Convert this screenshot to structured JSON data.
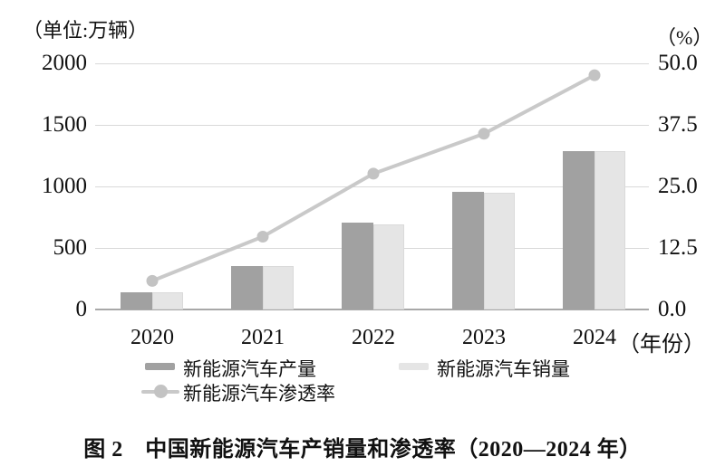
{
  "page": {
    "unit_left": "（单位:万辆）",
    "unit_right": "（%）",
    "year_suffix": "（年份）",
    "caption": "图 2　中国新能源汽车产销量和渗透率（2020—2024 年）"
  },
  "axes": {
    "left_ticks": [
      "2000",
      "1500",
      "1000",
      "500",
      "0"
    ],
    "right_ticks": [
      "50.0",
      "37.5",
      "25.0",
      "12.5",
      "0.0"
    ]
  },
  "legend": {
    "production": "新能源汽车产量",
    "sales": "新能源汽车销量",
    "penetration": "新能源汽车渗透率"
  },
  "colors": {
    "production_bar": "#a1a1a1",
    "sales_bar": "#e5e5e5",
    "sales_bar_border": "#dadada",
    "line": "#c9c9c9",
    "marker": "#c3c3c3",
    "gridline": "#d9d9d9",
    "baseline": "#a8a8a8",
    "text": "#111111"
  },
  "chart_data": {
    "type": "combo-bar-line",
    "title": "中国新能源汽车产销量和渗透率（2020—2024年）",
    "categories": [
      "2020",
      "2021",
      "2022",
      "2023",
      "2024"
    ],
    "series": [
      {
        "name": "新能源汽车产量",
        "type": "bar",
        "axis": "left",
        "values": [
          136.6,
          354.5,
          705.8,
          958.7,
          1288.8
        ]
      },
      {
        "name": "新能源汽车销量",
        "type": "bar",
        "axis": "left",
        "values": [
          136.7,
          352.1,
          688.7,
          949.5,
          1286.6
        ]
      },
      {
        "name": "新能源汽车渗透率",
        "type": "line",
        "axis": "right",
        "values": [
          5.8,
          14.8,
          27.6,
          35.7,
          47.6
        ]
      }
    ],
    "left_axis": {
      "label": "单位:万辆",
      "range": [
        0,
        2000
      ],
      "ticks": [
        0,
        500,
        1000,
        1500,
        2000
      ]
    },
    "right_axis": {
      "label": "%",
      "range": [
        0,
        50.0
      ],
      "ticks": [
        0.0,
        12.5,
        25.0,
        37.5,
        50.0
      ]
    },
    "grid": true,
    "legend_position": "bottom",
    "xlabel": "年份"
  }
}
